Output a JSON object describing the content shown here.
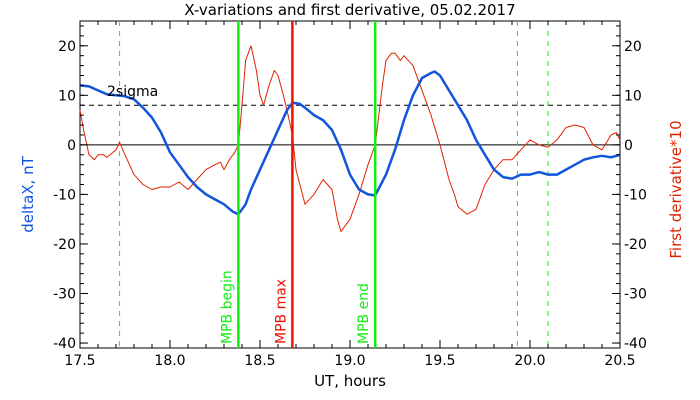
{
  "chart_data": {
    "type": "line",
    "title": "X-variations and first derivative, 05.02.2017",
    "xlabel": "UT, hours",
    "ylabel_left": "deltaX, nT",
    "ylabel_right": "First derivative*10",
    "xlim": [
      17.5,
      20.5
    ],
    "ylim": [
      -41,
      25
    ],
    "x_ticks": [
      "17.5",
      "18.0",
      "18.5",
      "19.0",
      "19.5",
      "20.0",
      "20.5"
    ],
    "x_tick_values": [
      17.5,
      18.0,
      18.5,
      19.0,
      19.5,
      20.0,
      20.5
    ],
    "y_ticks": [
      "20",
      "10",
      "0",
      "-10",
      "-20",
      "-30",
      "-40"
    ],
    "y_tick_values": [
      20,
      10,
      0,
      -10,
      -20,
      -30,
      -40
    ],
    "grid": false,
    "colors": {
      "deltaX": "#1155dd",
      "derivative": "#dd2200",
      "mpb_edge": "#11ee11",
      "mpb_max": "#ee1100",
      "text": "#000000"
    },
    "series": [
      {
        "name": "deltaX, nT",
        "x": [
          17.5,
          17.55,
          17.6,
          17.65,
          17.7,
          17.75,
          17.8,
          17.85,
          17.9,
          17.95,
          18.0,
          18.05,
          18.1,
          18.15,
          18.2,
          18.25,
          18.3,
          18.35,
          18.38,
          18.42,
          18.45,
          18.5,
          18.55,
          18.6,
          18.65,
          18.68,
          18.72,
          18.75,
          18.8,
          18.85,
          18.9,
          18.95,
          19.0,
          19.05,
          19.1,
          19.14,
          19.2,
          19.25,
          19.3,
          19.35,
          19.4,
          19.45,
          19.47,
          19.5,
          19.55,
          19.6,
          19.65,
          19.7,
          19.75,
          19.8,
          19.85,
          19.9,
          19.95,
          20.0,
          20.05,
          20.1,
          20.15,
          20.2,
          20.25,
          20.3,
          20.35,
          20.4,
          20.45,
          20.5
        ],
        "values": [
          12,
          11.8,
          11,
          10.2,
          10,
          9.8,
          9.2,
          7.5,
          5.5,
          2.5,
          -1.5,
          -4,
          -6.5,
          -8.5,
          -10,
          -11,
          -12,
          -13.5,
          -14,
          -12,
          -9,
          -5,
          -1,
          3,
          7,
          8.5,
          8.3,
          7.5,
          6,
          5,
          3,
          -1,
          -6,
          -9,
          -10,
          -10.2,
          -6,
          -1,
          5,
          10,
          13.5,
          14.5,
          14.8,
          14,
          11,
          8,
          5,
          1,
          -2,
          -5,
          -6.5,
          -6.8,
          -6,
          -6,
          -5.5,
          -6,
          -6,
          -5,
          -4,
          -3,
          -2.5,
          -2.2,
          -2.5,
          -2
        ]
      },
      {
        "name": "First derivative*10",
        "x": [
          17.5,
          17.52,
          17.55,
          17.58,
          17.6,
          17.63,
          17.65,
          17.7,
          17.72,
          17.75,
          17.8,
          17.85,
          17.9,
          17.95,
          18.0,
          18.05,
          18.1,
          18.15,
          18.2,
          18.25,
          18.28,
          18.3,
          18.33,
          18.36,
          18.38,
          18.4,
          18.42,
          18.45,
          18.48,
          18.5,
          18.52,
          18.55,
          18.58,
          18.6,
          18.63,
          18.65,
          18.68,
          18.7,
          18.75,
          18.8,
          18.85,
          18.9,
          18.93,
          18.95,
          19.0,
          19.05,
          19.1,
          19.14,
          19.18,
          19.2,
          19.23,
          19.25,
          19.28,
          19.3,
          19.35,
          19.4,
          19.45,
          19.5,
          19.55,
          19.58,
          19.6,
          19.65,
          19.7,
          19.75,
          19.8,
          19.85,
          19.9,
          19.95,
          20.0,
          20.05,
          20.1,
          20.15,
          20.2,
          20.25,
          20.3,
          20.35,
          20.4,
          20.45,
          20.48,
          20.5
        ],
        "values": [
          7,
          3,
          -2,
          -3,
          -2,
          -2,
          -2.5,
          -1,
          0.5,
          -2,
          -6,
          -8,
          -9,
          -8.5,
          -8.5,
          -7.5,
          -9,
          -7,
          -5,
          -4,
          -3.5,
          -5,
          -3,
          -1.5,
          0,
          8,
          17,
          20,
          15,
          10,
          8,
          12,
          15,
          14,
          10,
          7,
          2,
          -5,
          -12,
          -10,
          -7,
          -9,
          -15,
          -17.5,
          -15,
          -10,
          -4,
          0,
          12,
          17,
          18.5,
          18.5,
          17,
          18,
          16,
          11,
          6,
          0,
          -7,
          -10,
          -12.5,
          -14,
          -13,
          -8,
          -5,
          -3,
          -3,
          -1,
          1,
          0,
          -0.5,
          1,
          3.5,
          4,
          3.5,
          0,
          -1,
          2,
          2.5,
          1
        ]
      }
    ],
    "annotations": [
      {
        "label": "2sigma",
        "y": 8
      },
      {
        "label": "MPB begin",
        "x": 18.38
      },
      {
        "label": "MPB max",
        "x": 18.68
      },
      {
        "label": "MPB end",
        "x": 19.14
      }
    ],
    "dashed_verticals": [
      17.72,
      19.93,
      20.1
    ]
  }
}
